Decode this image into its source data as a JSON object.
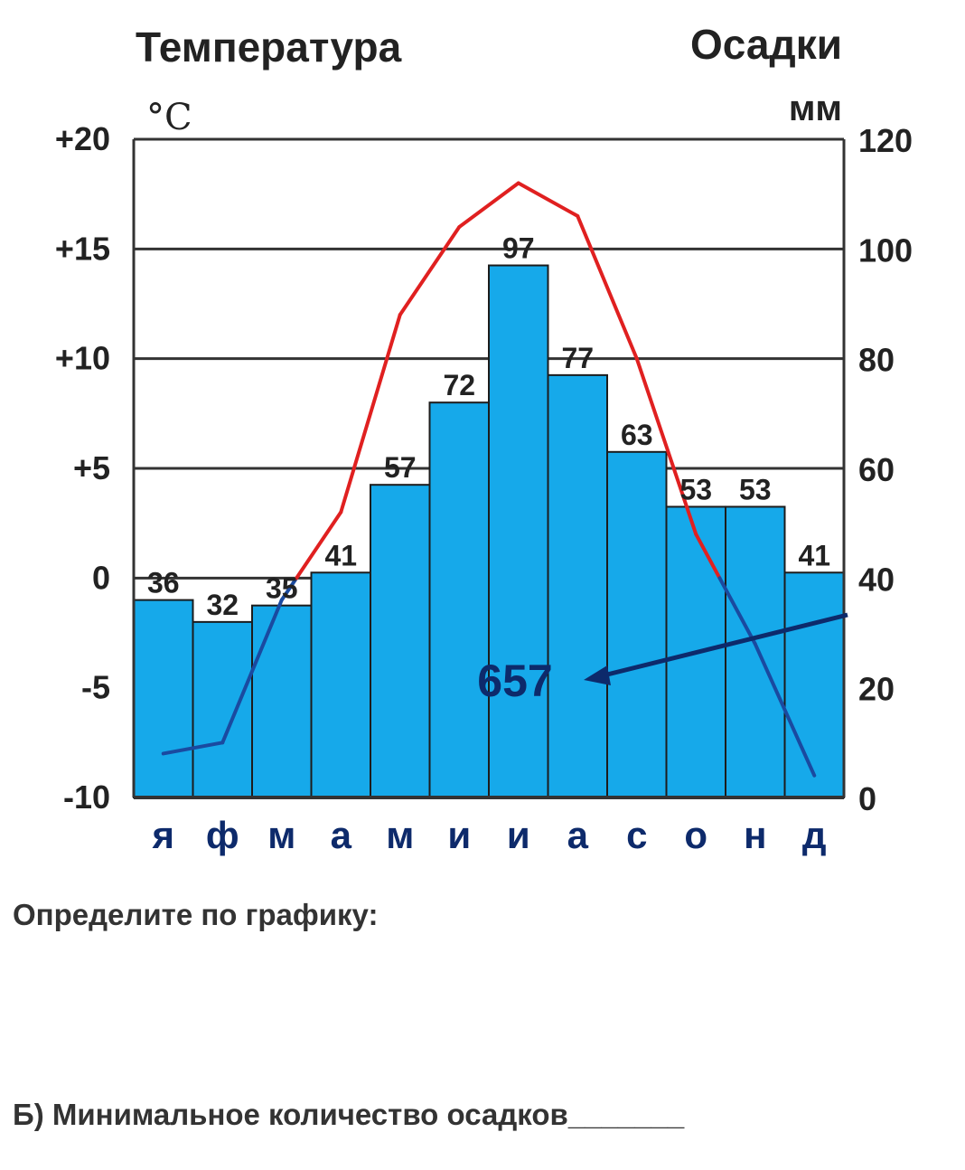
{
  "chart_data": {
    "type": "bar+line",
    "title_left": "Температура",
    "unit_left": "°C",
    "title_right": "Осадки",
    "unit_right": "мм",
    "left_axis": {
      "label": "Температура",
      "unit": "°C",
      "ylim": [
        -10,
        20
      ],
      "ticks": [
        "+20",
        "+15",
        "+10",
        "+5",
        "0",
        "-5",
        "-10"
      ],
      "tick_values": [
        20,
        15,
        10,
        5,
        0,
        -5,
        -10
      ]
    },
    "right_axis": {
      "label": "Осадки",
      "unit": "мм",
      "ylim": [
        0,
        120
      ],
      "ticks": [
        "120",
        "100",
        "80",
        "60",
        "40",
        "20",
        "0"
      ],
      "tick_values": [
        120,
        100,
        80,
        60,
        40,
        20,
        0
      ]
    },
    "categories": [
      "я",
      "ф",
      "м",
      "а",
      "м",
      "и",
      "и",
      "а",
      "с",
      "о",
      "н",
      "д"
    ],
    "precipitation": {
      "values": [
        36,
        32,
        35,
        41,
        57,
        72,
        97,
        77,
        63,
        53,
        53,
        41
      ],
      "color": "#16a9ea"
    },
    "temperature": {
      "values": [
        -8,
        -7.5,
        -1,
        3,
        12,
        16,
        18,
        16.5,
        10,
        2,
        -3,
        -9
      ],
      "color_positive": "#e02020",
      "color_negative": "#1a4aa0"
    },
    "total_precipitation": "657",
    "grid": true
  },
  "questions": {
    "title": "Определите по графику:",
    "b": "Б)  Минимальное количество осадков",
    "b_blank": "_______"
  }
}
